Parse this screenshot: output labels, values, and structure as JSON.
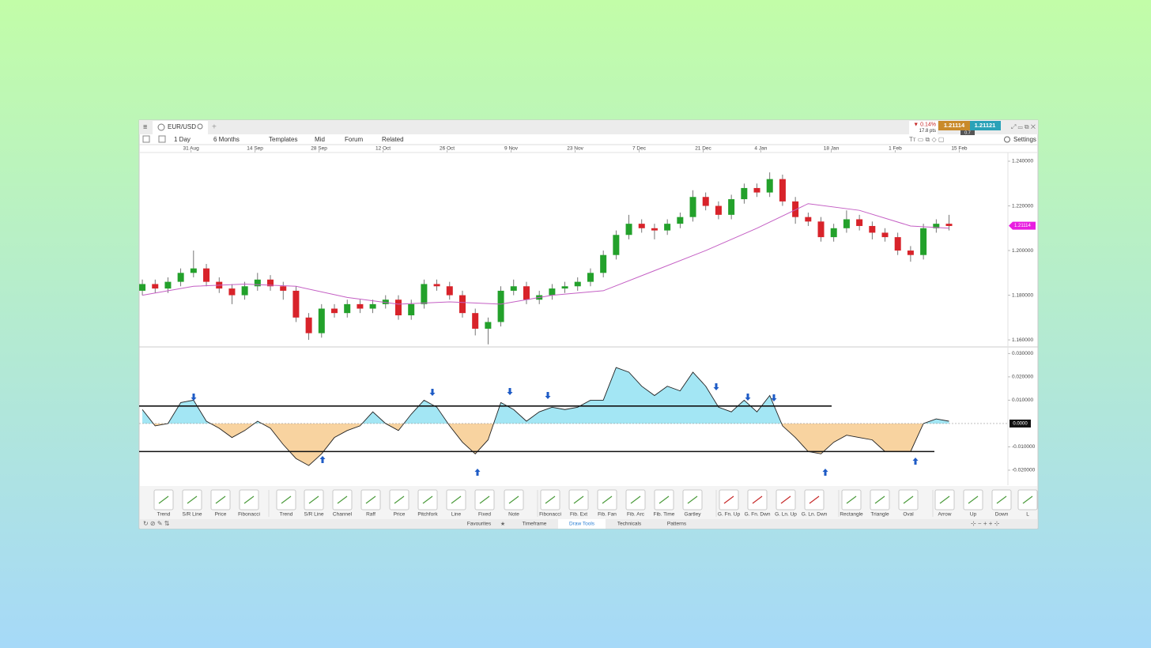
{
  "tab": {
    "symbol": "EUR/USD"
  },
  "quote": {
    "change": "▼ 0.14%",
    "points": "17.8 pts",
    "sell": "1.21114",
    "buy": "1.21121",
    "spread": "0.7"
  },
  "toolbar": {
    "interval": "1 Day",
    "range": "6 Months",
    "templates": "Templates",
    "mid": "Mid",
    "forum": "Forum",
    "related": "Related",
    "settings": "Settings"
  },
  "chart_data": [
    {
      "type": "candlestick",
      "xlim": [
        -0.25,
        67.6
      ],
      "xticks": [
        {
          "value": 3.8,
          "label": "31 Aug"
        },
        {
          "value": 8.8,
          "label": "14 Sep"
        },
        {
          "value": 13.8,
          "label": "28 Sep"
        },
        {
          "value": 18.8,
          "label": "12 Oct"
        },
        {
          "value": 23.8,
          "label": "26 Oct"
        },
        {
          "value": 28.8,
          "label": "9 Nov"
        },
        {
          "value": 33.8,
          "label": "23 Nov"
        },
        {
          "value": 38.8,
          "label": "7 Dec"
        },
        {
          "value": 43.8,
          "label": "21 Dec"
        },
        {
          "value": 48.3,
          "label": "4 Jan"
        },
        {
          "value": 53.8,
          "label": "18 Jan"
        },
        {
          "value": 58.8,
          "label": "1 Feb"
        },
        {
          "value": 63.8,
          "label": "15 Feb"
        }
      ],
      "ylim": [
        1.1572,
        1.2439
      ],
      "yticks": [
        {
          "value": 1.24,
          "label": "1.240000"
        },
        {
          "value": 1.22,
          "label": "1.220000"
        },
        {
          "value": 1.2,
          "label": "1.200000"
        },
        {
          "value": 1.18,
          "label": "1.180000"
        },
        {
          "value": 1.16,
          "label": "1.160000"
        }
      ],
      "up_color": "#23a12b",
      "down_color": "#d8232a",
      "open": [
        1.182,
        1.185,
        1.183,
        1.186,
        1.19,
        1.192,
        1.186,
        1.183,
        1.18,
        1.184,
        1.187,
        1.184,
        1.182,
        1.17,
        1.163,
        1.174,
        1.172,
        1.176,
        1.174,
        1.176,
        1.178,
        1.171,
        1.176,
        1.185,
        1.184,
        1.18,
        1.172,
        1.165,
        1.168,
        1.182,
        1.184,
        1.178,
        1.18,
        1.183,
        1.184,
        1.186,
        1.19,
        1.198,
        1.207,
        1.212,
        1.21,
        1.209,
        1.212,
        1.215,
        1.224,
        1.22,
        1.216,
        1.223,
        1.228,
        1.226,
        1.232,
        1.222,
        1.215,
        1.213,
        1.206,
        1.21,
        1.214,
        1.211,
        1.208,
        1.206,
        1.2,
        1.198,
        1.21,
        1.212
      ],
      "high": [
        1.187,
        1.187,
        1.188,
        1.192,
        1.2,
        1.194,
        1.188,
        1.185,
        1.186,
        1.19,
        1.189,
        1.186,
        1.184,
        1.172,
        1.176,
        1.176,
        1.178,
        1.178,
        1.178,
        1.18,
        1.18,
        1.178,
        1.187,
        1.187,
        1.186,
        1.182,
        1.174,
        1.17,
        1.184,
        1.187,
        1.186,
        1.182,
        1.185,
        1.186,
        1.188,
        1.192,
        1.2,
        1.209,
        1.216,
        1.214,
        1.212,
        1.214,
        1.217,
        1.227,
        1.226,
        1.222,
        1.225,
        1.23,
        1.23,
        1.235,
        1.234,
        1.224,
        1.217,
        1.215,
        1.212,
        1.218,
        1.216,
        1.213,
        1.21,
        1.208,
        1.202,
        1.212,
        1.214,
        1.216
      ],
      "low": [
        1.18,
        1.181,
        1.181,
        1.184,
        1.188,
        1.184,
        1.181,
        1.176,
        1.178,
        1.182,
        1.182,
        1.178,
        1.168,
        1.16,
        1.161,
        1.17,
        1.17,
        1.172,
        1.172,
        1.174,
        1.169,
        1.169,
        1.174,
        1.182,
        1.178,
        1.17,
        1.162,
        1.158,
        1.166,
        1.18,
        1.176,
        1.176,
        1.178,
        1.181,
        1.182,
        1.184,
        1.188,
        1.196,
        1.205,
        1.208,
        1.205,
        1.207,
        1.21,
        1.213,
        1.218,
        1.214,
        1.214,
        1.221,
        1.224,
        1.224,
        1.22,
        1.212,
        1.211,
        1.204,
        1.204,
        1.208,
        1.209,
        1.205,
        1.204,
        1.198,
        1.195,
        1.196,
        1.208,
        1.209
      ],
      "close": [
        1.185,
        1.183,
        1.186,
        1.19,
        1.192,
        1.186,
        1.183,
        1.18,
        1.184,
        1.187,
        1.184,
        1.182,
        1.17,
        1.163,
        1.174,
        1.172,
        1.176,
        1.174,
        1.176,
        1.178,
        1.171,
        1.176,
        1.185,
        1.184,
        1.18,
        1.172,
        1.165,
        1.168,
        1.182,
        1.184,
        1.178,
        1.18,
        1.183,
        1.184,
        1.186,
        1.19,
        1.198,
        1.207,
        1.212,
        1.21,
        1.209,
        1.212,
        1.215,
        1.224,
        1.22,
        1.216,
        1.223,
        1.228,
        1.226,
        1.232,
        1.222,
        1.215,
        1.213,
        1.206,
        1.21,
        1.214,
        1.211,
        1.208,
        1.206,
        1.2,
        1.198,
        1.21,
        1.212,
        1.211
      ],
      "moving_average": {
        "color": "#c45fc4",
        "x": [
          0,
          4,
          8,
          12,
          16,
          20,
          24,
          28,
          32,
          36,
          40,
          44,
          48,
          52,
          56,
          60,
          63
        ],
        "values": [
          1.18,
          1.184,
          1.185,
          1.184,
          1.179,
          1.176,
          1.177,
          1.176,
          1.18,
          1.182,
          1.191,
          1.2,
          1.21,
          1.221,
          1.218,
          1.211,
          1.21
        ]
      },
      "price_tag": {
        "value": 1.21114,
        "label": "1.21114",
        "color": "#e81ee0"
      }
    },
    {
      "type": "area",
      "xlim": [
        -0.25,
        67.6
      ],
      "ylim": [
        -0.0261,
        0.0325
      ],
      "yticks": [
        {
          "value": 0.03,
          "label": "0.030000"
        },
        {
          "value": 0.02,
          "label": "0.020000"
        },
        {
          "value": 0.01,
          "label": "0.010000"
        },
        {
          "value": -0.01,
          "label": "-0.010000"
        },
        {
          "value": -0.02,
          "label": "-0.020000"
        }
      ],
      "zero_tag": {
        "value": 0,
        "label": "0.0000"
      },
      "levels": [
        0.0075,
        -0.012
      ],
      "pos_color": "#a3e6f4",
      "neg_color": "#f8d3a0",
      "values": [
        0.006,
        -0.001,
        0,
        0.009,
        0.01,
        0.001,
        -0.002,
        -0.006,
        -0.003,
        0.001,
        -0.002,
        -0.009,
        -0.015,
        -0.018,
        -0.013,
        -0.006,
        -0.003,
        -0.001,
        0.005,
        0,
        -0.003,
        0.004,
        0.01,
        0.007,
        -0.001,
        -0.008,
        -0.013,
        -0.007,
        0.009,
        0.006,
        0.001,
        0.005,
        0.007,
        0.006,
        0.007,
        0.01,
        0.01,
        0.024,
        0.022,
        0.016,
        0.012,
        0.016,
        0.014,
        0.022,
        0.016,
        0.007,
        0.005,
        0.01,
        0.005,
        0.012,
        -0.001,
        -0.006,
        -0.012,
        -0.013,
        -0.008,
        -0.005,
        -0.006,
        -0.007,
        -0.012,
        -0.012,
        -0.012,
        0,
        0.002,
        0.001
      ]
    }
  ],
  "tools": [
    "Trend",
    "S/R Line",
    "Price",
    "Fibonacci",
    "Trend",
    "S/R Line",
    "Channel",
    "Raff",
    "Price",
    "Pitchfork",
    "Line",
    "Fixed",
    "Note",
    "Fibonacci",
    "Fib. Ext",
    "Fib. Fan",
    "Fib. Arc",
    "Fib. Time",
    "Gartley",
    "G. Fn. Up",
    "G. Fn. Dwn",
    "G. Ln. Up",
    "G. Ln. Dwn",
    "Rectangle",
    "Triangle",
    "Oval",
    "Arrow",
    "Up",
    "Down",
    "L"
  ],
  "tabs": [
    "Favourites",
    "Timeframe",
    "Draw Tools",
    "Technicals",
    "Patterns"
  ]
}
